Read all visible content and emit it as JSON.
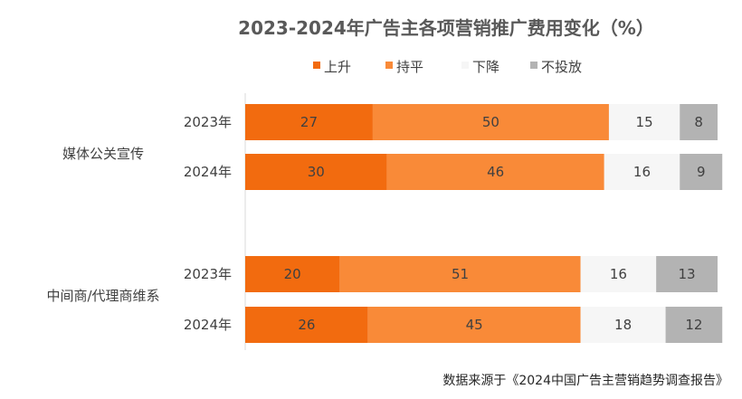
{
  "chart_data": {
    "type": "bar",
    "orientation": "horizontal",
    "stacked": true,
    "title": "2023-2024年广告主各项营销推广费用变化（%）",
    "groups": [
      {
        "name": "媒体公关宣传",
        "rows": [
          "2023年",
          "2024年"
        ]
      },
      {
        "name": "中间商/代理商维系",
        "rows": [
          "2023年",
          "2024年"
        ]
      }
    ],
    "categories": [
      "2023年",
      "2024年",
      "2023年",
      "2024年"
    ],
    "series": [
      {
        "name": "上升",
        "color": "#F26B0F",
        "values": [
          27,
          30,
          20,
          26
        ]
      },
      {
        "name": "持平",
        "color": "#F98A38",
        "values": [
          50,
          46,
          51,
          45
        ]
      },
      {
        "name": "下降",
        "color": "#F6F6F6",
        "values": [
          15,
          16,
          16,
          18
        ]
      },
      {
        "name": "不投放",
        "color": "#B3B3B3",
        "values": [
          8,
          9,
          13,
          12
        ]
      }
    ],
    "xlim": [
      0,
      100
    ],
    "grid": false,
    "legend_position": "top"
  },
  "source": "数据来源于《2024中国广告主营销趋势调查报告》"
}
